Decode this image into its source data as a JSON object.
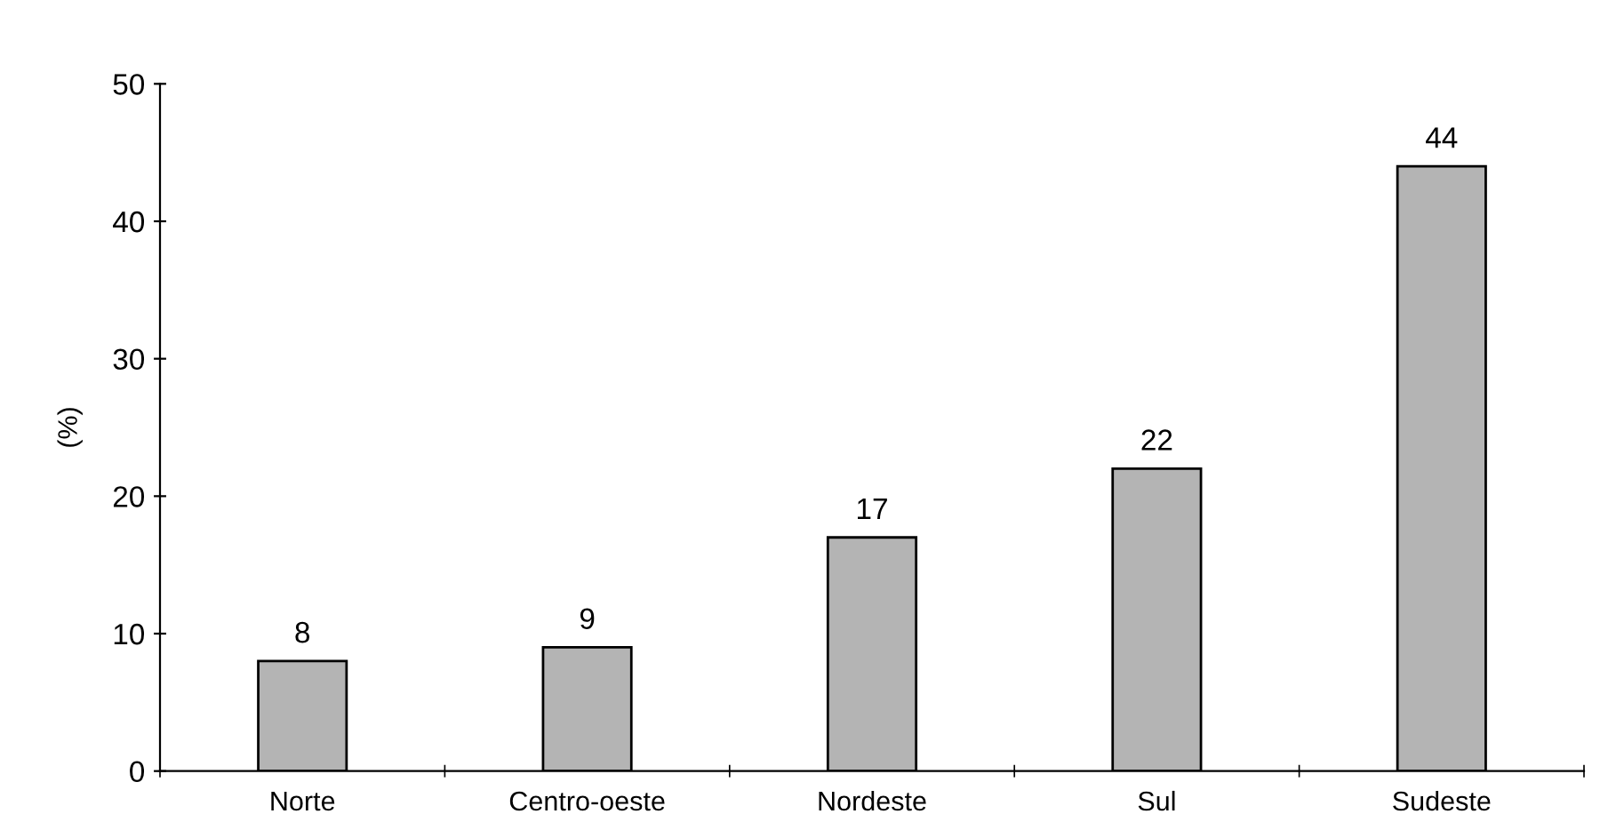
{
  "chart_data": {
    "type": "bar",
    "ylabel": "(%)",
    "categories": [
      "Norte",
      "Centro-oeste",
      "Nordeste",
      "Sul",
      "Sudeste"
    ],
    "values": [
      8,
      9,
      17,
      22,
      44
    ],
    "color": "#b4b4b4",
    "ylim": [
      0,
      50
    ],
    "yticks": [
      0,
      10,
      20,
      30,
      40,
      50
    ],
    "data_labels": true,
    "grid": false,
    "legend": false
  }
}
